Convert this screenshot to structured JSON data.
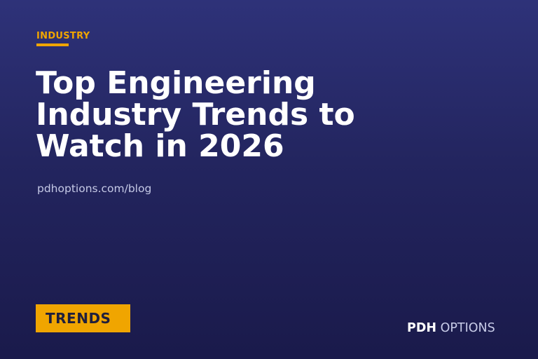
{
  "category": "INDUSTRY",
  "title_lines": [
    "Top Engineering",
    "Industry Trends to",
    "Watch in 2026"
  ],
  "url": "pdhoptions.com/blog",
  "tag": "TRENDS",
  "brand": {
    "bold": "PDH",
    "light": "OPTIONS"
  }
}
